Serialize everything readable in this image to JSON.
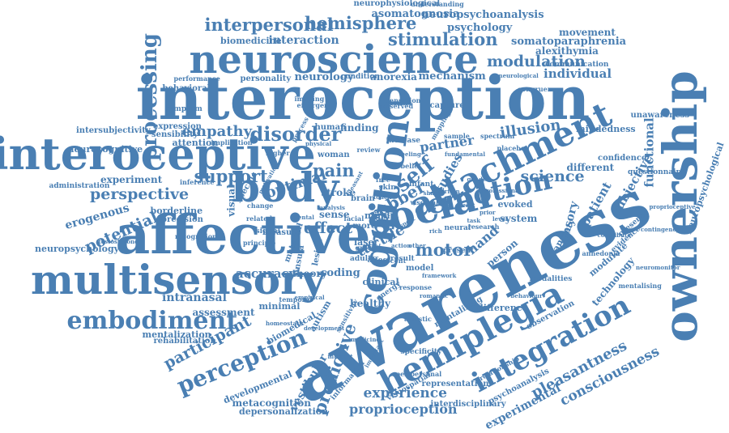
{
  "cloud": {
    "color": "#4a7fb3",
    "words": [
      {
        "text": "interoception"
      },
      {
        "text": "awareness"
      },
      {
        "text": "affective"
      },
      {
        "text": "interoceptive"
      },
      {
        "text": "ownership"
      },
      {
        "text": "neuroscience"
      },
      {
        "text": "multisensory"
      },
      {
        "text": "body"
      },
      {
        "text": "social"
      },
      {
        "text": "cognition"
      },
      {
        "text": "hemiplegia"
      },
      {
        "text": "attachment"
      },
      {
        "text": "integration"
      },
      {
        "text": "embodiment"
      },
      {
        "text": "emotion"
      },
      {
        "text": "perception"
      },
      {
        "text": "processing"
      },
      {
        "text": "interpersonal"
      },
      {
        "text": "hemisphere"
      },
      {
        "text": "stimulation"
      },
      {
        "text": "modulation"
      },
      {
        "text": "disorder"
      },
      {
        "text": "empathy"
      },
      {
        "text": "support"
      },
      {
        "text": "perspective"
      },
      {
        "text": "potential"
      },
      {
        "text": "participant"
      },
      {
        "text": "predictive"
      },
      {
        "text": "experience"
      },
      {
        "text": "proprioception"
      },
      {
        "text": "consciousness"
      },
      {
        "text": "pleasantness"
      },
      {
        "text": "science"
      },
      {
        "text": "illusion"
      },
      {
        "text": "partner"
      },
      {
        "text": "motor"
      },
      {
        "text": "tactile"
      },
      {
        "text": "rubber"
      },
      {
        "text": "self"
      },
      {
        "text": "studies"
      },
      {
        "text": "pain"
      },
      {
        "text": "optimal"
      },
      {
        "text": "effect"
      },
      {
        "text": "accuracy"
      },
      {
        "text": "intranasal"
      },
      {
        "text": "assessment"
      },
      {
        "text": "mentalization"
      },
      {
        "text": "rehabilitation"
      },
      {
        "text": "metacognition"
      },
      {
        "text": "depersonalization"
      },
      {
        "text": "developmental"
      },
      {
        "text": "vestibular"
      },
      {
        "text": "experimental"
      },
      {
        "text": "individual"
      },
      {
        "text": "mechanism"
      },
      {
        "text": "neuropsychoanalysis"
      },
      {
        "text": "asomatognosia"
      },
      {
        "text": "neurophysiological"
      },
      {
        "text": "psychology"
      },
      {
        "text": "somatoparaphrenia"
      },
      {
        "text": "alexithymia"
      },
      {
        "text": "interaction"
      },
      {
        "text": "biomedicine"
      },
      {
        "text": "neurology"
      },
      {
        "text": "anorexia"
      },
      {
        "text": "personality"
      },
      {
        "text": "condition"
      },
      {
        "text": "behavioral"
      },
      {
        "text": "performance"
      },
      {
        "text": "attention"
      },
      {
        "text": "neurocognitive"
      },
      {
        "text": "intersubjectivity"
      },
      {
        "text": "expression"
      },
      {
        "text": "sensibility"
      },
      {
        "text": "experiment"
      },
      {
        "text": "administration"
      },
      {
        "text": "inference"
      },
      {
        "text": "erogenous"
      },
      {
        "text": "borderline"
      },
      {
        "text": "precision"
      },
      {
        "text": "neuropsychology"
      },
      {
        "text": "testosterone"
      },
      {
        "text": "sensory"
      },
      {
        "text": "patient"
      },
      {
        "text": "subjective"
      },
      {
        "text": "anxiety"
      },
      {
        "text": "functional"
      },
      {
        "text": "different"
      },
      {
        "text": "confidence"
      },
      {
        "text": "mindedness"
      },
      {
        "text": "unawareness"
      },
      {
        "text": "questionnaire"
      },
      {
        "text": "neuropsychological"
      },
      {
        "text": "proprioceptive"
      },
      {
        "text": "contingency"
      },
      {
        "text": "technology"
      },
      {
        "text": "modulate"
      },
      {
        "text": "mentalising"
      },
      {
        "text": "modalities"
      },
      {
        "text": "difference"
      },
      {
        "text": "observation"
      },
      {
        "text": "mentalizing"
      },
      {
        "text": "psychoanalysis"
      },
      {
        "text": "interdisciplinary"
      },
      {
        "text": "representation"
      },
      {
        "text": "visuospatial"
      },
      {
        "text": "information"
      },
      {
        "text": "healthy"
      },
      {
        "text": "biomedical"
      },
      {
        "text": "autism"
      },
      {
        "text": "minimal"
      },
      {
        "text": "coding"
      },
      {
        "text": "theory"
      },
      {
        "text": "clinical"
      },
      {
        "text": "energy"
      },
      {
        "text": "hand"
      },
      {
        "text": "person"
      },
      {
        "text": "system"
      },
      {
        "text": "evoked"
      },
      {
        "text": "sense"
      },
      {
        "text": "stroke"
      },
      {
        "text": "brain"
      },
      {
        "text": "mind"
      },
      {
        "text": "finding"
      },
      {
        "text": "human"
      },
      {
        "text": "visual"
      },
      {
        "text": "specific"
      },
      {
        "text": "related"
      },
      {
        "text": "measure"
      },
      {
        "text": "insula"
      },
      {
        "text": "lesion"
      },
      {
        "text": "laser"
      },
      {
        "text": "style"
      },
      {
        "text": "more"
      },
      {
        "text": "adult"
      },
      {
        "text": "affect"
      },
      {
        "text": "result"
      },
      {
        "text": "model"
      },
      {
        "text": "response"
      },
      {
        "text": "temporal"
      },
      {
        "text": "movement"
      },
      {
        "text": "communication"
      },
      {
        "text": "understanding"
      },
      {
        "text": "capture"
      },
      {
        "text": "increase"
      },
      {
        "text": "woman"
      },
      {
        "text": "infant"
      },
      {
        "text": "belief"
      },
      {
        "text": "skin"
      },
      {
        "text": "free"
      },
      {
        "text": "neural"
      },
      {
        "text": "research"
      },
      {
        "text": "present"
      },
      {
        "text": "group"
      },
      {
        "text": "signal"
      },
      {
        "text": "touch"
      },
      {
        "text": "maternal"
      },
      {
        "text": "sensitivity"
      },
      {
        "text": "specificity"
      },
      {
        "text": "relationship"
      },
      {
        "text": "peripersonal"
      },
      {
        "text": "development"
      },
      {
        "text": "mapping"
      },
      {
        "text": "sample"
      },
      {
        "text": "spectrum"
      },
      {
        "text": "placebo"
      },
      {
        "text": "congruency"
      },
      {
        "text": "neurological"
      },
      {
        "text": "sensation"
      },
      {
        "text": "observed"
      },
      {
        "text": "review"
      },
      {
        "text": "implication"
      },
      {
        "text": "symptom"
      },
      {
        "text": "imaging"
      },
      {
        "text": "emergent"
      },
      {
        "text": "process"
      },
      {
        "text": "facial"
      },
      {
        "text": "mental"
      },
      {
        "text": "higher"
      },
      {
        "text": "change"
      },
      {
        "text": "principle"
      },
      {
        "text": "recognition"
      },
      {
        "text": "evidence"
      },
      {
        "text": "presence"
      },
      {
        "text": "contribute"
      },
      {
        "text": "anhedonia"
      },
      {
        "text": "neuromonitor"
      },
      {
        "text": "behaviour"
      },
      {
        "text": "recent"
      },
      {
        "text": "action"
      },
      {
        "text": "other"
      },
      {
        "text": "aspect"
      },
      {
        "text": "visceral"
      },
      {
        "text": "rich"
      },
      {
        "text": "shape"
      },
      {
        "text": "heart"
      },
      {
        "text": "prior"
      },
      {
        "text": "task"
      },
      {
        "text": "level"
      },
      {
        "text": "origin"
      },
      {
        "text": "gender"
      },
      {
        "text": "feeling"
      },
      {
        "text": "physical"
      },
      {
        "text": "fundamental"
      },
      {
        "text": "framework"
      },
      {
        "text": "interact"
      },
      {
        "text": "autistic"
      },
      {
        "text": "medicine"
      },
      {
        "text": "important"
      },
      {
        "text": "homeostatic"
      },
      {
        "text": "empirical"
      },
      {
        "text": "professional"
      },
      {
        "text": "motivation"
      },
      {
        "text": "pleasant"
      },
      {
        "text": "romantic"
      },
      {
        "text": "analysis"
      },
      {
        "text": "cardiac"
      },
      {
        "text": "perceptual"
      }
    ]
  }
}
